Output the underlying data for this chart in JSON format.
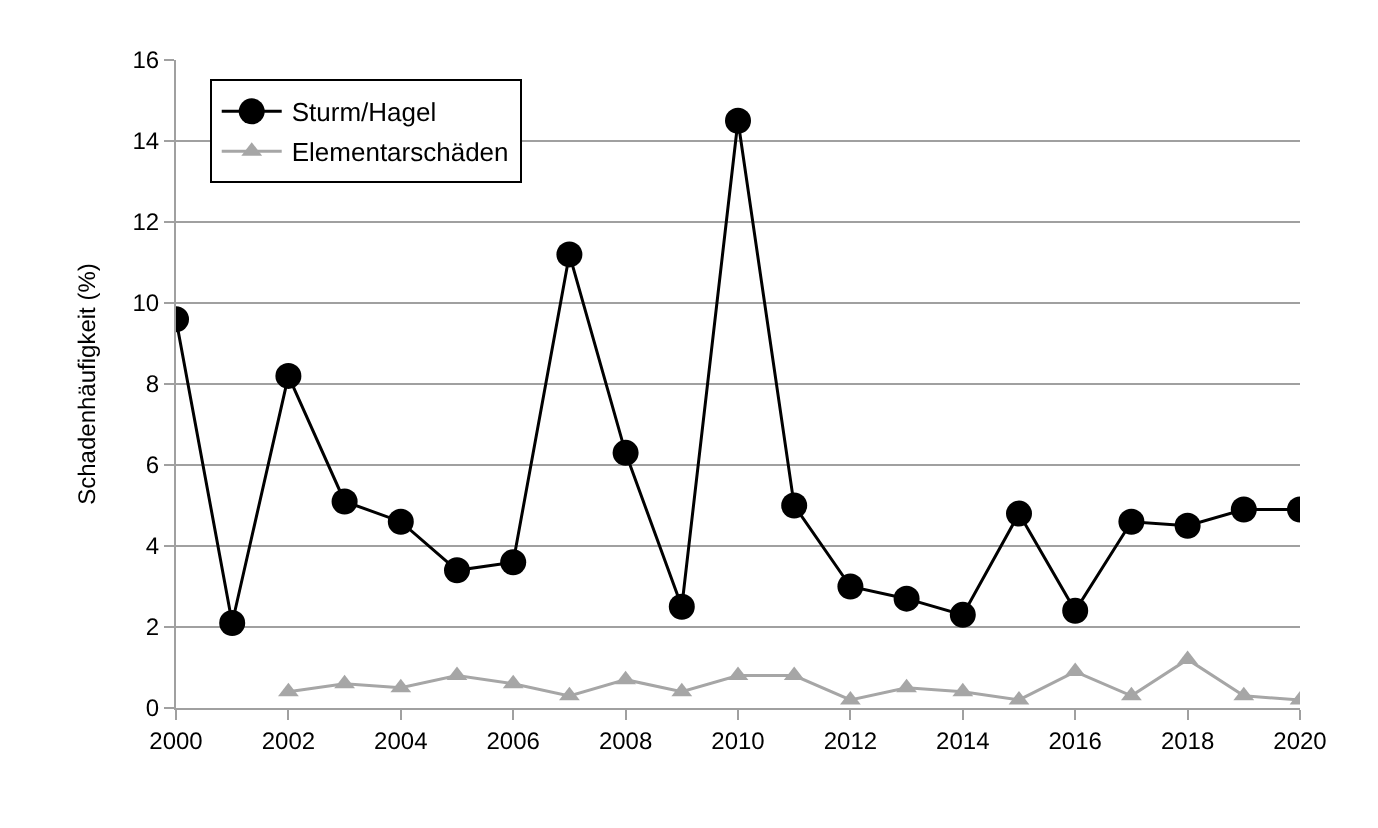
{
  "chart_data": {
    "type": "line",
    "ylabel": "Schadenhäufigkeit (%)",
    "x": [
      2000,
      2001,
      2002,
      2003,
      2004,
      2005,
      2006,
      2007,
      2008,
      2009,
      2010,
      2011,
      2012,
      2013,
      2014,
      2015,
      2016,
      2017,
      2018,
      2019,
      2020
    ],
    "series": [
      {
        "name": "Sturm/Hagel",
        "color": "#000000",
        "marker": "circle",
        "values": [
          9.6,
          2.1,
          8.2,
          5.1,
          4.6,
          3.4,
          3.6,
          11.2,
          6.3,
          2.5,
          14.5,
          5.0,
          3.0,
          2.7,
          2.3,
          4.8,
          2.4,
          4.6,
          4.5,
          4.9,
          4.9
        ]
      },
      {
        "name": "Elementarschäden",
        "color": "#a6a6a6",
        "marker": "triangle",
        "values": [
          null,
          null,
          0.4,
          0.6,
          0.5,
          0.8,
          0.6,
          0.3,
          0.7,
          0.4,
          0.8,
          0.8,
          0.2,
          0.5,
          0.4,
          0.2,
          0.9,
          0.3,
          1.2,
          0.3,
          0.2
        ]
      }
    ],
    "xlim": [
      2000,
      2020
    ],
    "xticks": [
      2000,
      2002,
      2004,
      2006,
      2008,
      2010,
      2012,
      2014,
      2016,
      2018,
      2020
    ],
    "ylim": [
      0,
      16
    ],
    "yticks": [
      0,
      2,
      4,
      6,
      8,
      10,
      12,
      14,
      16
    ],
    "grid": "y",
    "legend": "top left",
    "line_style": "solid"
  }
}
